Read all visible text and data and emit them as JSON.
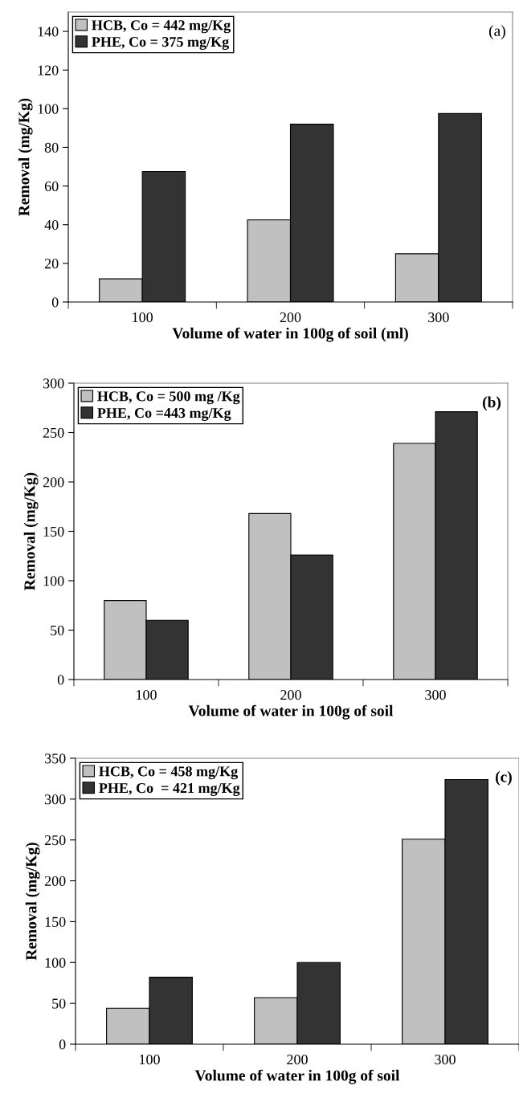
{
  "chart_data": [
    {
      "type": "bar",
      "categories": [
        "100",
        "200",
        "300"
      ],
      "xlabel": "Volume of water in 100g of soil (ml)",
      "ylabel": "Removal (mg/Kg)",
      "ylim": [
        0,
        150
      ],
      "yticks": [
        0,
        20,
        40,
        60,
        80,
        100,
        120,
        140
      ],
      "legend": "top left",
      "annotations": [
        "(a)"
      ],
      "series": [
        {
          "name": "HCB, Co = 442 mg/Kg",
          "color": "#c0c0c0",
          "values": [
            12,
            42.5,
            25
          ]
        },
        {
          "name": "PHE, Co = 375 mg/Kg",
          "color": "#333333",
          "values": [
            67.5,
            92,
            97.5
          ]
        }
      ]
    },
    {
      "type": "bar",
      "categories": [
        "100",
        "200",
        "300"
      ],
      "xlabel": "Volume of water in 100g of soil",
      "ylabel": "Removal (mg/Kg)",
      "ylim": [
        0,
        300
      ],
      "yticks": [
        0,
        50,
        100,
        150,
        200,
        250,
        300
      ],
      "legend": "top left",
      "annotations": [
        "(b)"
      ],
      "series": [
        {
          "name": "HCB, Co = 500 mg /Kg",
          "color": "#c0c0c0",
          "values": [
            80,
            168,
            239
          ]
        },
        {
          "name": "PHE, Co =443 mg/Kg",
          "color": "#333333",
          "values": [
            60,
            126,
            271
          ]
        }
      ]
    },
    {
      "type": "bar",
      "categories": [
        "100",
        "200",
        "300"
      ],
      "xlabel": "Volume of water in 100g of soil",
      "ylabel": "Removal (mg/Kg)",
      "ylim": [
        0,
        350
      ],
      "yticks": [
        0,
        50,
        100,
        150,
        200,
        250,
        300,
        350
      ],
      "legend": "top left",
      "annotations": [
        "(c)"
      ],
      "series": [
        {
          "name": "HCB, Co = 458 mg/Kg",
          "color": "#c0c0c0",
          "values": [
            44,
            57,
            251
          ]
        },
        {
          "name": "PHE, Co  = 421 mg/Kg",
          "color": "#333333",
          "values": [
            82,
            100,
            324
          ]
        }
      ]
    }
  ]
}
